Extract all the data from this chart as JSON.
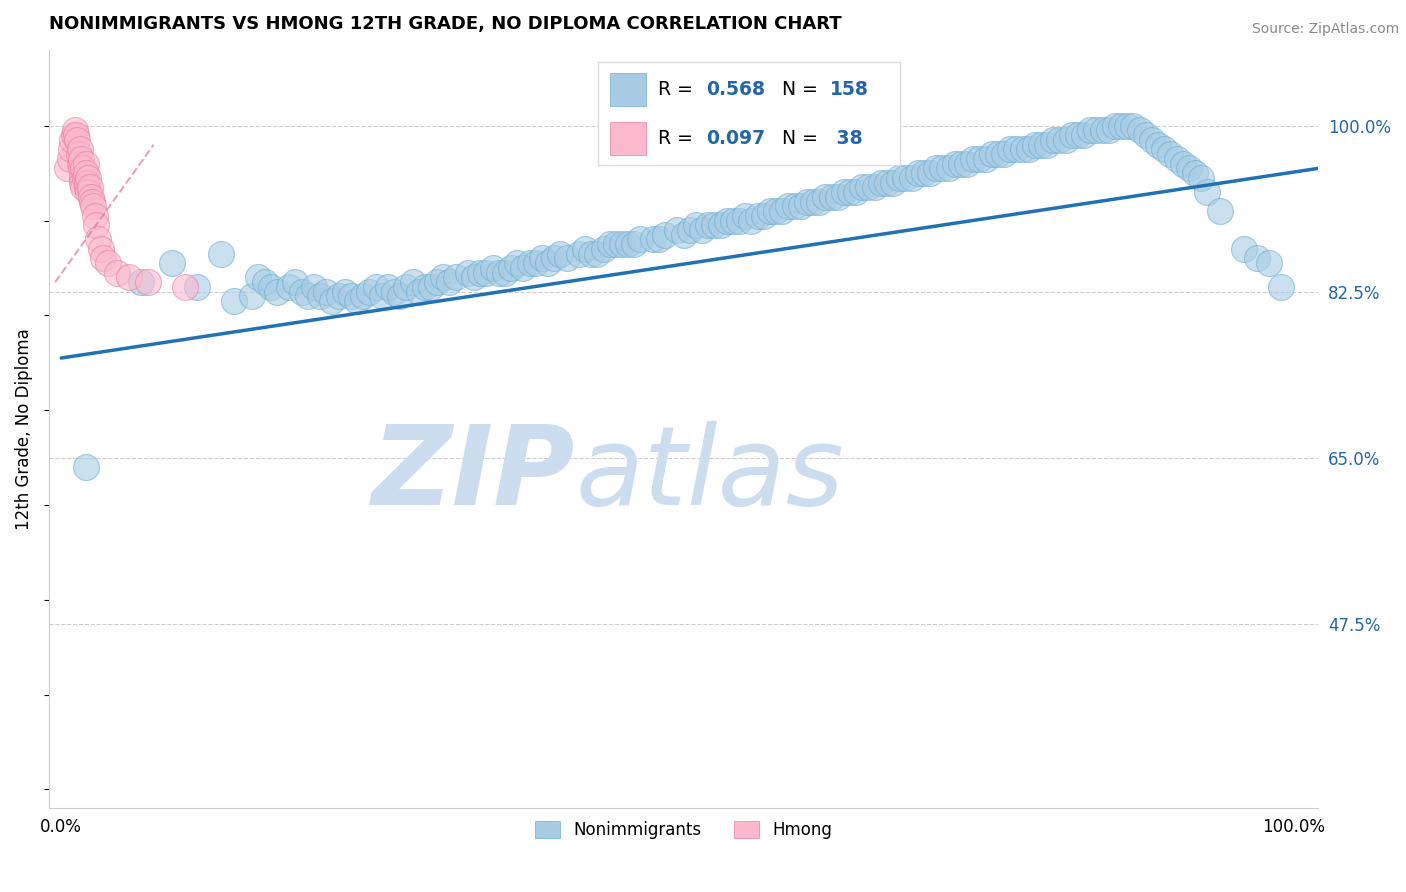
{
  "title": "NONIMMIGRANTS VS HMONG 12TH GRADE, NO DIPLOMA CORRELATION CHART",
  "source": "Source: ZipAtlas.com",
  "ylabel": "12th Grade, No Diploma",
  "yticks": [
    0.475,
    0.65,
    0.825,
    1.0
  ],
  "ytick_labels": [
    "47.5%",
    "65.0%",
    "82.5%",
    "100.0%"
  ],
  "xlim": [
    -0.01,
    1.02
  ],
  "ylim": [
    0.28,
    1.08
  ],
  "blue_color": "#a8cce4",
  "blue_edge_color": "#6baed6",
  "pink_color": "#fcb8cc",
  "pink_edge_color": "#e87fa0",
  "trend_blue_color": "#2171b5",
  "trend_pink_color": "#de77ae",
  "watermark_zip": "ZIP",
  "watermark_atlas": "atlas",
  "watermark_color": "#ccddf0",
  "label_color": "#2166ac",
  "trend_blue_x0": 0.0,
  "trend_blue_y0": 0.755,
  "trend_blue_x1": 1.02,
  "trend_blue_y1": 0.955,
  "trend_pink_x0": -0.005,
  "trend_pink_y0": 0.835,
  "trend_pink_x1": 0.075,
  "trend_pink_y1": 0.98,
  "blue_scatter_x": [
    0.02,
    0.065,
    0.09,
    0.11,
    0.13,
    0.14,
    0.155,
    0.16,
    0.165,
    0.17,
    0.175,
    0.185,
    0.19,
    0.195,
    0.2,
    0.205,
    0.21,
    0.215,
    0.22,
    0.225,
    0.23,
    0.235,
    0.24,
    0.245,
    0.25,
    0.255,
    0.26,
    0.265,
    0.27,
    0.275,
    0.28,
    0.285,
    0.29,
    0.295,
    0.3,
    0.305,
    0.31,
    0.315,
    0.32,
    0.33,
    0.335,
    0.34,
    0.345,
    0.35,
    0.355,
    0.36,
    0.365,
    0.37,
    0.375,
    0.38,
    0.385,
    0.39,
    0.395,
    0.4,
    0.405,
    0.41,
    0.42,
    0.425,
    0.43,
    0.435,
    0.44,
    0.445,
    0.45,
    0.455,
    0.46,
    0.465,
    0.47,
    0.48,
    0.485,
    0.49,
    0.5,
    0.505,
    0.51,
    0.515,
    0.52,
    0.525,
    0.53,
    0.535,
    0.54,
    0.545,
    0.55,
    0.555,
    0.56,
    0.565,
    0.57,
    0.575,
    0.58,
    0.585,
    0.59,
    0.595,
    0.6,
    0.605,
    0.61,
    0.615,
    0.62,
    0.625,
    0.63,
    0.635,
    0.64,
    0.645,
    0.65,
    0.655,
    0.66,
    0.665,
    0.67,
    0.675,
    0.68,
    0.685,
    0.69,
    0.695,
    0.7,
    0.705,
    0.71,
    0.715,
    0.72,
    0.725,
    0.73,
    0.735,
    0.74,
    0.745,
    0.75,
    0.755,
    0.76,
    0.765,
    0.77,
    0.775,
    0.78,
    0.785,
    0.79,
    0.795,
    0.8,
    0.805,
    0.81,
    0.815,
    0.82,
    0.825,
    0.83,
    0.835,
    0.84,
    0.845,
    0.85,
    0.855,
    0.86,
    0.865,
    0.87,
    0.875,
    0.88,
    0.885,
    0.89,
    0.895,
    0.9,
    0.905,
    0.91,
    0.915,
    0.92,
    0.925,
    0.93,
    0.94,
    0.96,
    0.97,
    0.98,
    0.99
  ],
  "blue_scatter_y": [
    0.64,
    0.835,
    0.855,
    0.83,
    0.865,
    0.815,
    0.82,
    0.84,
    0.835,
    0.83,
    0.825,
    0.83,
    0.835,
    0.825,
    0.82,
    0.83,
    0.82,
    0.825,
    0.815,
    0.82,
    0.825,
    0.82,
    0.815,
    0.82,
    0.825,
    0.83,
    0.82,
    0.83,
    0.825,
    0.82,
    0.83,
    0.835,
    0.825,
    0.83,
    0.83,
    0.835,
    0.84,
    0.835,
    0.84,
    0.845,
    0.84,
    0.845,
    0.845,
    0.85,
    0.845,
    0.845,
    0.85,
    0.855,
    0.85,
    0.855,
    0.855,
    0.86,
    0.855,
    0.86,
    0.865,
    0.86,
    0.865,
    0.87,
    0.865,
    0.865,
    0.87,
    0.875,
    0.875,
    0.875,
    0.875,
    0.875,
    0.88,
    0.88,
    0.88,
    0.885,
    0.89,
    0.885,
    0.89,
    0.895,
    0.89,
    0.895,
    0.895,
    0.895,
    0.9,
    0.9,
    0.9,
    0.905,
    0.9,
    0.905,
    0.905,
    0.91,
    0.91,
    0.91,
    0.915,
    0.915,
    0.915,
    0.92,
    0.92,
    0.92,
    0.925,
    0.925,
    0.925,
    0.93,
    0.93,
    0.93,
    0.935,
    0.935,
    0.935,
    0.94,
    0.94,
    0.94,
    0.945,
    0.945,
    0.945,
    0.95,
    0.95,
    0.95,
    0.955,
    0.955,
    0.955,
    0.96,
    0.96,
    0.96,
    0.965,
    0.965,
    0.965,
    0.97,
    0.97,
    0.97,
    0.975,
    0.975,
    0.975,
    0.975,
    0.98,
    0.98,
    0.98,
    0.985,
    0.985,
    0.985,
    0.99,
    0.99,
    0.99,
    0.995,
    0.995,
    0.995,
    0.995,
    1.0,
    1.0,
    1.0,
    1.0,
    0.995,
    0.99,
    0.985,
    0.98,
    0.975,
    0.97,
    0.965,
    0.96,
    0.955,
    0.95,
    0.945,
    0.93,
    0.91,
    0.87,
    0.86,
    0.855,
    0.83
  ],
  "pink_scatter_x": [
    0.005,
    0.007,
    0.008,
    0.009,
    0.01,
    0.011,
    0.012,
    0.013,
    0.014,
    0.015,
    0.015,
    0.016,
    0.016,
    0.017,
    0.017,
    0.018,
    0.018,
    0.019,
    0.02,
    0.02,
    0.021,
    0.021,
    0.022,
    0.022,
    0.023,
    0.024,
    0.025,
    0.026,
    0.027,
    0.028,
    0.03,
    0.032,
    0.034,
    0.038,
    0.045,
    0.055,
    0.07,
    0.1
  ],
  "pink_scatter_y": [
    0.955,
    0.965,
    0.975,
    0.985,
    0.99,
    0.995,
    0.99,
    0.985,
    0.97,
    0.96,
    0.975,
    0.955,
    0.965,
    0.945,
    0.94,
    0.955,
    0.935,
    0.945,
    0.96,
    0.95,
    0.935,
    0.94,
    0.945,
    0.93,
    0.935,
    0.925,
    0.92,
    0.915,
    0.905,
    0.895,
    0.88,
    0.87,
    0.86,
    0.855,
    0.845,
    0.84,
    0.835,
    0.83
  ]
}
